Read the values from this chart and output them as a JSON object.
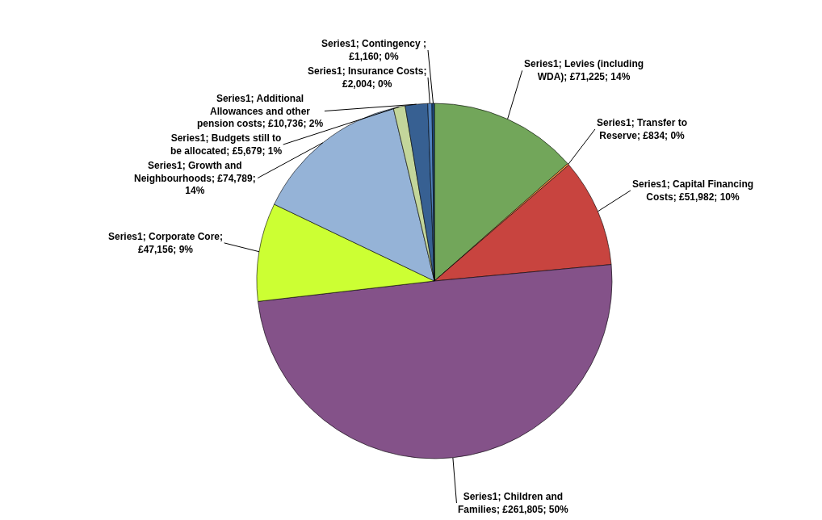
{
  "chart_data": {
    "type": "pie",
    "categories": [
      null,
      null,
      null,
      null,
      null,
      null,
      null,
      null,
      null,
      null
    ],
    "values": [
      71225,
      834,
      51982,
      261805,
      47156,
      74789,
      5679,
      10736,
      2004,
      1160
    ],
    "colors": [
      "#72a65a",
      "#f79646",
      "#c8443f",
      "#845289",
      "#ccff33",
      "#95b3d7",
      "#c3d69b",
      "#376092",
      "#4f81bd",
      "#1f497d"
    ],
    "value_labels": [
      "Series1; Levies (including WDA); £71,225; 14%",
      "Series1; Transfer to Reserve; £834; 0%",
      "Series1; Capital Financing Costs; £51,982; 10%",
      "Series1; Children and Families; £261,805; 50%",
      "Series1; Corporate Core; £47,156; 9%",
      "Series1; Growth and Neighbourhoods; £74,789; 14%",
      "Series1; Budgets still to be allocated; £5,679; 1%",
      "Series1; Additional Allowances and other pension costs; £10,736; 2%",
      "Series1; Insurance Costs; £2,004; 0%",
      "Series1; Contingency ; £1,160; 0%"
    ],
    "legend": false
  }
}
